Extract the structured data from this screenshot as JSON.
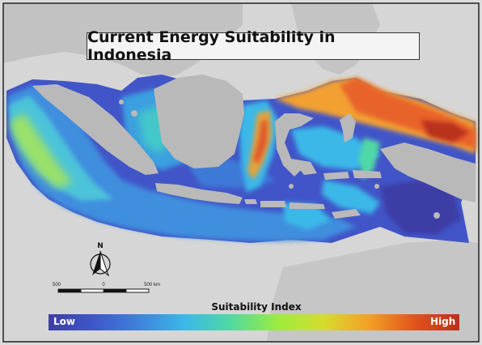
{
  "map": {
    "title": "Current Energy Suitability in Indonesia",
    "north_arrow_label": "N",
    "scale_bar": {
      "labels": [
        "500",
        "0",
        "500 km"
      ]
    },
    "legend": {
      "title": "Suitability Index",
      "low_label": "Low",
      "high_label": "High",
      "colors": [
        "#3c3ea6",
        "#3f57c9",
        "#3f82dc",
        "#3bb8e8",
        "#4fd8a6",
        "#9cec3d",
        "#d6dc2d",
        "#f3a026",
        "#e2541a",
        "#b8301e"
      ]
    },
    "colors": {
      "land": "#b9b9b9",
      "background": "#dcdcdc",
      "border": "#222222"
    }
  }
}
